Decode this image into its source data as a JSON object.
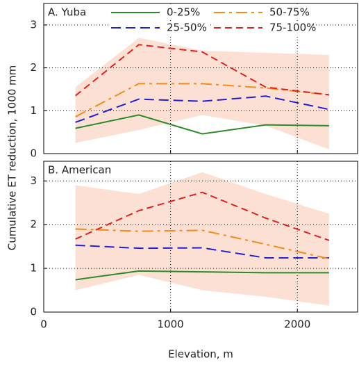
{
  "chart_data": [
    {
      "type": "line",
      "title": "A. Yuba",
      "y_label": "Cumulative ET reduction, 1000 mm",
      "x": [
        250,
        750,
        1250,
        1750,
        2250
      ],
      "xlim": [
        0,
        2475
      ],
      "xticks": [
        0,
        1000,
        2000
      ],
      "ylim": [
        0,
        3.5
      ],
      "yticks": [
        0,
        1,
        2,
        3
      ],
      "grid": true,
      "band": {
        "color": "#fde0d4",
        "lower": [
          0.25,
          0.55,
          0.9,
          0.65,
          0.1
        ],
        "upper": [
          1.55,
          2.7,
          2.4,
          2.35,
          2.3
        ]
      },
      "series": [
        {
          "name": "0-25%",
          "color": "#2a8a2a",
          "dash": "none",
          "values": [
            0.59,
            0.9,
            0.46,
            0.67,
            0.65
          ]
        },
        {
          "name": "25-50%",
          "color": "#1f1fd0",
          "dash": "14,7",
          "values": [
            0.73,
            1.27,
            1.22,
            1.34,
            1.03
          ]
        },
        {
          "name": "50-75%",
          "color": "#f08c1e",
          "dash": "16,6,4,6",
          "values": [
            0.86,
            1.63,
            1.63,
            1.53,
            1.37
          ]
        },
        {
          "name": "75-100%",
          "color": "#e02020",
          "dash": "10,6",
          "values": [
            1.35,
            2.54,
            2.37,
            1.55,
            1.37
          ]
        }
      ]
    },
    {
      "type": "line",
      "title": "B. American",
      "x_label": "Elevation, m",
      "x": [
        250,
        750,
        1250,
        1750,
        2250
      ],
      "xlim": [
        0,
        2475
      ],
      "xticks": [
        0,
        1000,
        2000
      ],
      "ylim": [
        0,
        3.45
      ],
      "yticks": [
        0,
        1,
        2,
        3
      ],
      "grid": true,
      "band": {
        "color": "#fde0d4",
        "lower": [
          0.5,
          0.85,
          0.5,
          0.35,
          0.15
        ],
        "upper": [
          2.9,
          2.7,
          3.2,
          2.7,
          2.25
        ]
      },
      "series": [
        {
          "color": "#2a8a2a",
          "dash": "none",
          "values": [
            0.74,
            0.94,
            0.92,
            0.9,
            0.9
          ]
        },
        {
          "color": "#1f1fd0",
          "dash": "14,7",
          "values": [
            1.53,
            1.46,
            1.47,
            1.24,
            1.24
          ]
        },
        {
          "color": "#f08c1e",
          "dash": "16,6,4,6",
          "values": [
            1.9,
            1.85,
            1.87,
            1.55,
            1.22
          ]
        },
        {
          "color": "#e02020",
          "dash": "10,6",
          "values": [
            1.67,
            2.32,
            2.74,
            2.15,
            1.64
          ]
        }
      ]
    }
  ]
}
